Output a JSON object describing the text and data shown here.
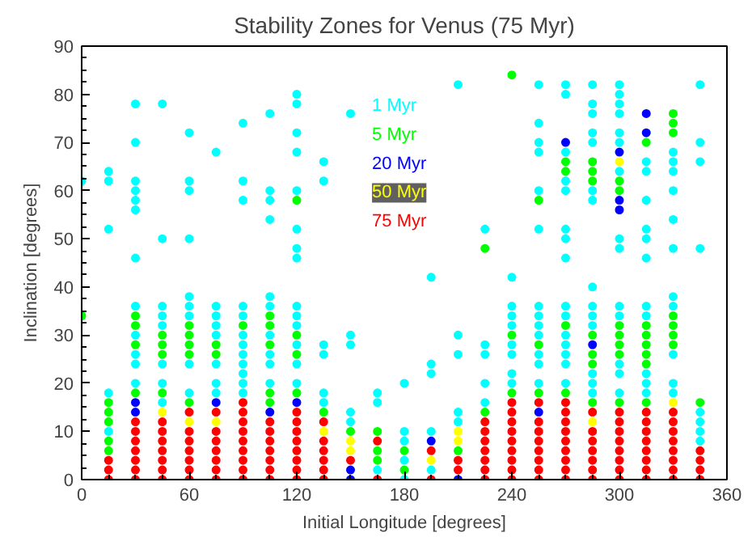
{
  "chart_data": {
    "type": "scatter",
    "title": "Stability Zones for Venus (75 Myr)",
    "xlabel": "Initial Longitude [degrees]",
    "ylabel": "Inclination [degrees]",
    "xlim": [
      0,
      360
    ],
    "ylim": [
      0,
      90
    ],
    "xticks": [
      0,
      60,
      120,
      180,
      240,
      300,
      360
    ],
    "yticks": [
      0,
      10,
      20,
      30,
      40,
      50,
      60,
      70,
      80,
      90
    ],
    "grid": false,
    "legend": "top",
    "marker": "circle",
    "series": [
      {
        "name": "1 Myr",
        "color": "#00ffff",
        "x": [
          0,
          15,
          15,
          15,
          15,
          15,
          30,
          30,
          30,
          30,
          30,
          30,
          30,
          30,
          30,
          30,
          30,
          30,
          45,
          45,
          45,
          45,
          45,
          45,
          45,
          45,
          60,
          60,
          60,
          60,
          60,
          60,
          60,
          60,
          60,
          75,
          75,
          75,
          75,
          75,
          75,
          75,
          75,
          90,
          90,
          90,
          90,
          90,
          90,
          90,
          90,
          90,
          90,
          90,
          90,
          105,
          105,
          105,
          105,
          105,
          105,
          105,
          105,
          105,
          105,
          120,
          120,
          120,
          120,
          120,
          120,
          120,
          120,
          120,
          120,
          120,
          120,
          120,
          120,
          135,
          135,
          135,
          135,
          135,
          135,
          150,
          150,
          150,
          150,
          150,
          165,
          165,
          165,
          180,
          180,
          180,
          180,
          180,
          195,
          195,
          195,
          195,
          195,
          210,
          210,
          210,
          210,
          210,
          225,
          225,
          225,
          225,
          225,
          240,
          240,
          240,
          240,
          240,
          240,
          240,
          240,
          255,
          255,
          255,
          255,
          255,
          255,
          255,
          255,
          255,
          255,
          255,
          255,
          255,
          270,
          270,
          270,
          270,
          270,
          270,
          270,
          270,
          270,
          270,
          270,
          270,
          270,
          270,
          270,
          285,
          285,
          285,
          285,
          285,
          285,
          285,
          285,
          285,
          285,
          285,
          285,
          285,
          285,
          300,
          300,
          300,
          300,
          300,
          300,
          300,
          300,
          300,
          300,
          300,
          300,
          300,
          300,
          315,
          315,
          315,
          315,
          315,
          315,
          315,
          315,
          315,
          315,
          315,
          330,
          330,
          330,
          330,
          330,
          330,
          330,
          330,
          330,
          330,
          330,
          345,
          345,
          345,
          345,
          345,
          345,
          345,
          345
        ],
        "values": [
          62,
          64,
          62,
          52,
          18,
          10,
          78,
          70,
          62,
          60,
          58,
          56,
          46,
          36,
          30,
          26,
          24,
          20,
          78,
          50,
          36,
          34,
          32,
          24,
          20,
          16,
          72,
          62,
          60,
          50,
          38,
          36,
          34,
          24,
          18,
          68,
          36,
          34,
          32,
          30,
          24,
          20,
          18,
          74,
          62,
          58,
          36,
          34,
          30,
          28,
          26,
          24,
          22,
          20,
          18,
          76,
          60,
          58,
          54,
          38,
          36,
          30,
          26,
          24,
          20,
          80,
          78,
          72,
          68,
          60,
          52,
          48,
          46,
          36,
          34,
          32,
          28,
          24,
          20,
          66,
          62,
          28,
          26,
          18,
          16,
          76,
          30,
          28,
          14,
          12,
          18,
          16,
          2,
          20,
          10,
          8,
          4,
          0,
          42,
          24,
          22,
          10,
          2,
          82,
          30,
          26,
          14,
          12,
          52,
          28,
          26,
          20,
          16,
          42,
          36,
          34,
          32,
          28,
          26,
          22,
          20,
          82,
          74,
          70,
          68,
          60,
          52,
          36,
          34,
          32,
          30,
          26,
          24,
          20,
          82,
          80,
          68,
          62,
          60,
          52,
          50,
          46,
          36,
          34,
          30,
          28,
          26,
          24,
          20,
          82,
          78,
          76,
          72,
          70,
          60,
          58,
          40,
          36,
          34,
          32,
          22,
          20,
          18,
          82,
          80,
          78,
          76,
          72,
          70,
          64,
          50,
          48,
          36,
          34,
          24,
          22,
          18,
          66,
          64,
          58,
          52,
          50,
          46,
          36,
          34,
          22,
          20,
          18,
          68,
          66,
          64,
          60,
          54,
          48,
          38,
          36,
          26,
          20,
          18,
          82,
          70,
          66,
          48,
          14,
          12,
          10,
          8
        ]
      },
      {
        "name": "5 Myr",
        "color": "#00ff00",
        "x": [
          0,
          15,
          15,
          15,
          15,
          15,
          30,
          30,
          30,
          30,
          45,
          45,
          45,
          45,
          60,
          60,
          60,
          60,
          60,
          75,
          75,
          90,
          105,
          105,
          105,
          105,
          105,
          120,
          120,
          120,
          120,
          135,
          150,
          165,
          165,
          165,
          180,
          180,
          210,
          225,
          225,
          240,
          240,
          240,
          255,
          255,
          255,
          270,
          270,
          270,
          270,
          285,
          285,
          285,
          285,
          285,
          285,
          285,
          300,
          300,
          300,
          300,
          300,
          300,
          300,
          315,
          315,
          315,
          315,
          315,
          315,
          315,
          330,
          330,
          330,
          330,
          330,
          330,
          330,
          345
        ],
        "values": [
          34,
          16,
          14,
          12,
          8,
          6,
          34,
          32,
          28,
          18,
          30,
          28,
          26,
          18,
          32,
          30,
          28,
          26,
          16,
          28,
          26,
          32,
          34,
          32,
          28,
          18,
          16,
          58,
          30,
          26,
          18,
          14,
          10,
          10,
          6,
          4,
          6,
          2,
          6,
          48,
          14,
          84,
          30,
          18,
          58,
          28,
          18,
          66,
          64,
          32,
          18,
          66,
          64,
          62,
          30,
          26,
          24,
          16,
          62,
          60,
          32,
          30,
          28,
          26,
          16,
          70,
          32,
          30,
          28,
          26,
          24,
          16,
          76,
          74,
          72,
          34,
          32,
          30,
          28,
          16
        ]
      },
      {
        "name": "20 Myr",
        "color": "#0000ff",
        "x": [
          30,
          30,
          75,
          105,
          120,
          150,
          150,
          195,
          210,
          255,
          270,
          285,
          300,
          300,
          300,
          315,
          315
        ],
        "values": [
          16,
          14,
          16,
          14,
          16,
          2,
          0,
          8,
          0,
          14,
          70,
          28,
          68,
          58,
          56,
          76,
          72
        ]
      },
      {
        "name": "50 Myr",
        "color": "#ffff00",
        "x": [
          45,
          60,
          75,
          135,
          150,
          150,
          195,
          210,
          210,
          285,
          300,
          330
        ],
        "values": [
          14,
          12,
          12,
          10,
          8,
          6,
          4,
          10,
          8,
          12,
          66,
          16
        ]
      },
      {
        "name": "75 Myr",
        "color": "#ff0000",
        "x": [
          15,
          15,
          15,
          30,
          30,
          30,
          30,
          30,
          30,
          30,
          45,
          45,
          45,
          45,
          45,
          45,
          45,
          60,
          60,
          60,
          60,
          60,
          60,
          60,
          75,
          75,
          75,
          75,
          75,
          75,
          75,
          90,
          90,
          90,
          90,
          90,
          90,
          90,
          90,
          90,
          105,
          105,
          105,
          105,
          105,
          105,
          105,
          120,
          120,
          120,
          120,
          120,
          120,
          120,
          120,
          135,
          135,
          135,
          135,
          135,
          135,
          150,
          165,
          165,
          195,
          195,
          210,
          210,
          225,
          225,
          225,
          225,
          225,
          225,
          225,
          240,
          240,
          240,
          240,
          240,
          240,
          240,
          240,
          240,
          255,
          255,
          255,
          255,
          255,
          255,
          255,
          255,
          270,
          270,
          270,
          270,
          270,
          270,
          270,
          270,
          270,
          285,
          285,
          285,
          285,
          285,
          285,
          285,
          300,
          300,
          300,
          300,
          300,
          300,
          300,
          300,
          315,
          315,
          315,
          315,
          315,
          315,
          315,
          315,
          330,
          330,
          330,
          330,
          330,
          330,
          330,
          330,
          345,
          345,
          345,
          345
        ],
        "values": [
          4,
          2,
          0,
          12,
          10,
          8,
          6,
          4,
          2,
          0,
          12,
          10,
          8,
          6,
          4,
          2,
          0,
          14,
          10,
          8,
          6,
          4,
          2,
          0,
          14,
          10,
          8,
          6,
          4,
          2,
          0,
          16,
          14,
          12,
          10,
          8,
          6,
          4,
          2,
          0,
          12,
          10,
          8,
          6,
          4,
          2,
          0,
          14,
          12,
          10,
          8,
          6,
          4,
          2,
          0,
          12,
          8,
          6,
          4,
          2,
          0,
          4,
          8,
          0,
          6,
          0,
          4,
          2,
          12,
          10,
          8,
          6,
          4,
          2,
          0,
          16,
          14,
          12,
          10,
          8,
          6,
          4,
          2,
          0,
          16,
          12,
          10,
          8,
          6,
          4,
          2,
          0,
          16,
          14,
          12,
          10,
          8,
          6,
          4,
          2,
          0,
          14,
          10,
          8,
          6,
          4,
          2,
          0,
          14,
          12,
          10,
          8,
          6,
          4,
          2,
          0,
          14,
          12,
          10,
          8,
          6,
          4,
          2,
          0,
          14,
          12,
          10,
          8,
          6,
          4,
          2,
          0,
          6,
          4,
          2,
          0
        ]
      }
    ]
  }
}
